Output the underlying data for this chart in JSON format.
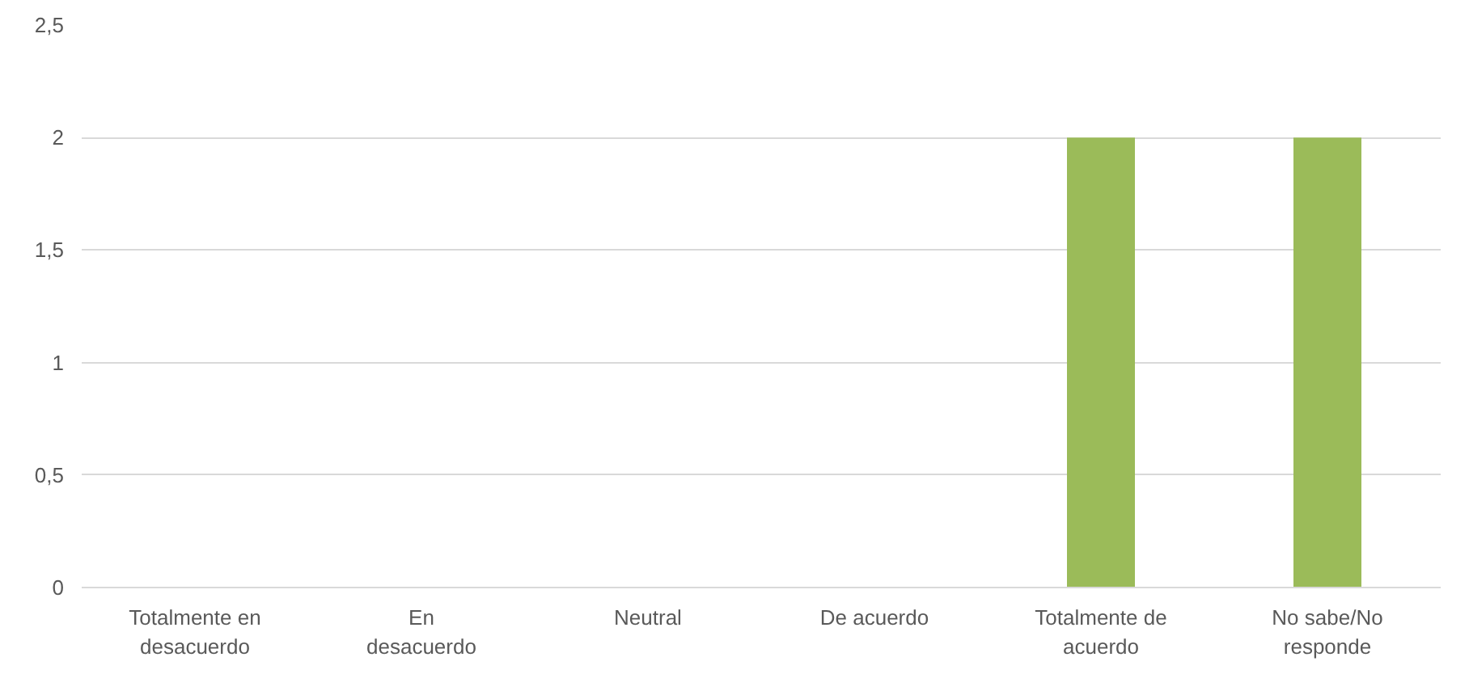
{
  "chart_data": {
    "type": "bar",
    "categories": [
      "Totalmente en\ndesacuerdo",
      "En\ndesacuerdo",
      "Neutral",
      "De acuerdo",
      "Totalmente de\nacuerdo",
      "No sabe/No\nresponde"
    ],
    "values": [
      0,
      0,
      0,
      0,
      2,
      2
    ],
    "color": "#9bbb59",
    "ylim": [
      0,
      2.5
    ],
    "yticks": [
      0,
      {
        "value": 0.5,
        "label": "0,5"
      },
      1,
      {
        "value": 1.5,
        "label": "1,5"
      },
      2,
      {
        "value": 2.5,
        "label": "2,5"
      }
    ],
    "grid": "y"
  }
}
